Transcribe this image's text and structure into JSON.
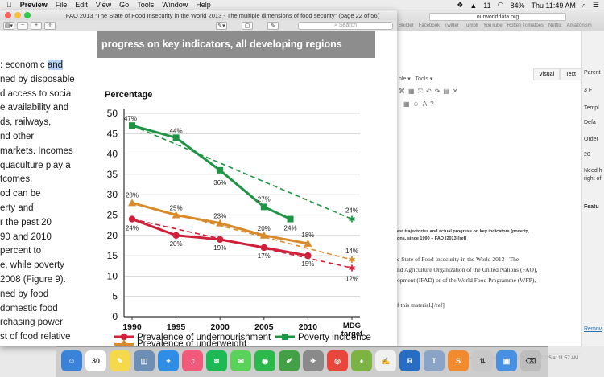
{
  "menubar": {
    "app": "Preview",
    "items": [
      "File",
      "Edit",
      "View",
      "Go",
      "Tools",
      "Window",
      "Help"
    ],
    "status": {
      "battery": "84%",
      "clock": "Thu 11:49 AM",
      "num": "11"
    }
  },
  "preview": {
    "title": "FAO 2013 \"The State of Food Insecurity in the World 2013 - The multiple dimensions of food security\" (page 22 of 56)",
    "search_placeholder": "Search",
    "banner": "progress on key indicators, all developing regions",
    "paragraph_lines": [
      ": economic and",
      "ned by disposable",
      "d access to social",
      "e availability and",
      "ds, railways,",
      "nd other",
      " markets. Incomes",
      "quaculture play a",
      "tcomes.",
      "od can be",
      "erty and",
      "r the past 20",
      "90 and 2010",
      "percent to",
      "e, while poverty",
      "2008 (Figure 9).",
      "ned by food",
      "domestic food",
      "rchasing power",
      "st of food relative",
      "n an increasing"
    ],
    "highlighted_word": "and"
  },
  "chart_data": {
    "type": "line",
    "ylabel": "Percentage",
    "ylim": [
      0,
      50
    ],
    "yticks": [
      0,
      5,
      10,
      15,
      20,
      25,
      30,
      35,
      40,
      45,
      50
    ],
    "categories": [
      "1990",
      "1995",
      "2000",
      "2005",
      "2010",
      "MDG\ntarget"
    ],
    "x_tick_labels": [
      "1990",
      "1995",
      "2000",
      "2005",
      "2010",
      "MDG",
      "target"
    ],
    "series": [
      {
        "name": "Prevalence of undernourishment",
        "color": "#d0203a",
        "points": [
          [
            1990,
            24
          ],
          [
            1995,
            20
          ],
          [
            2000,
            19
          ],
          [
            2005,
            17
          ],
          [
            2010,
            15
          ]
        ],
        "labels": [
          "24%",
          "20%",
          "19%",
          "17%",
          "15%"
        ],
        "trajectory": [
          [
            1990,
            24
          ],
          [
            2015,
            12
          ]
        ],
        "target": 12,
        "target_label": "12%"
      },
      {
        "name": "Poverty incidence",
        "color": "#1f9444",
        "points": [
          [
            1990,
            47
          ],
          [
            1995,
            44
          ],
          [
            2000,
            36
          ],
          [
            2005,
            27
          ],
          [
            2008,
            24
          ]
        ],
        "labels": [
          "47%",
          "44%",
          "36%",
          "27%",
          "24%"
        ],
        "trajectory": [
          [
            1990,
            47
          ],
          [
            2015,
            24
          ]
        ],
        "target": 24,
        "target_label": "24%"
      },
      {
        "name": "Prevalence of underweight",
        "color": "#d98a2b",
        "points": [
          [
            1990,
            28
          ],
          [
            1995,
            25
          ],
          [
            2000,
            23
          ],
          [
            2005,
            20
          ],
          [
            2010,
            18
          ]
        ],
        "labels": [
          "28%",
          "25%",
          "23%",
          "20%",
          "18%"
        ],
        "trajectory": [
          [
            1990,
            28
          ],
          [
            2015,
            14
          ]
        ],
        "target": 14,
        "target_label": "14%"
      }
    ],
    "legend": [
      "Prevalence of undernourishment",
      "Poverty incidence",
      "Prevalence of underweight"
    ]
  },
  "browser": {
    "url": "ourworlddata.org",
    "bookmarks": [
      "Builder",
      "Facebook",
      "Twitter",
      "Tumblr",
      "YouTube",
      "Rotten Tomatoes",
      "Netflix",
      "AmazonSm"
    ],
    "tabs": {
      "visual": "Visual",
      "text": "Text"
    },
    "toolbar": [
      "ble ▾",
      "Tools ▾"
    ],
    "body_lines": [
      "est trajectories and actual progress on key indicators (poverty,",
      "ons, since 1990 – FAO (2013)[ref]",
      "e State of Food Insecurity in the World 2013 - The",
      "nd Agriculture Organization of the United Nations (FAO),",
      "opment (IFAD) or of the World Food Programme (WFP),",
      "f this material.[/ref]"
    ],
    "footer": "Last edited by Lindsay Lee on July 20, 2015 at 11:57 AM",
    "sidebar": [
      "Parent",
      "3 F",
      "Templ",
      "Defa",
      "Order",
      "20",
      "Need h",
      "right of",
      "Featu",
      "Remov"
    ]
  },
  "dock": {
    "icons": [
      "finder",
      "calendar",
      "notes",
      "preview",
      "safari",
      "itunes",
      "spotify",
      "messages",
      "facetime",
      "evernote",
      "launchpad",
      "chrome",
      "android",
      "textedit",
      "r",
      "tex",
      "sublime",
      "transmit",
      "folder",
      "trash"
    ],
    "calendar_day": "30"
  }
}
